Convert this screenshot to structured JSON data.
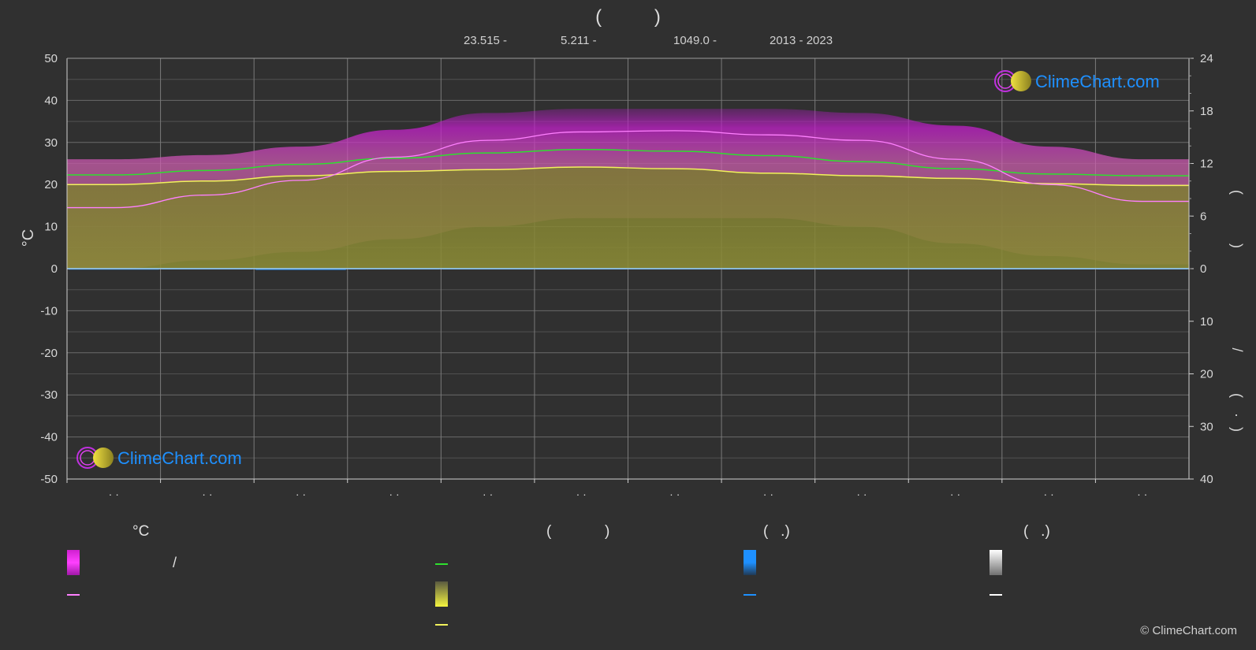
{
  "header": {
    "title_open": "(",
    "title_close": ")",
    "stats": [
      "23.515 -",
      "5.211 -",
      "1049.0 -",
      "2013 - 2023"
    ]
  },
  "axes": {
    "left_unit": "°C",
    "left_ticks": [
      "50",
      "40",
      "30",
      "20",
      "10",
      "0",
      "-10",
      "-20",
      "-30",
      "-40",
      "-50"
    ],
    "right_ticks_top": [
      "24",
      "18",
      "12",
      "6",
      "0"
    ],
    "right_ticks_bottom": [
      "10",
      "20",
      "30",
      "40"
    ],
    "right_labels": [
      "(",
      ")",
      "/",
      "(",
      "·",
      ")"
    ],
    "month_ticks": [
      "· ·",
      "· ·",
      "· ·",
      "· ·",
      "· ·",
      "· ·",
      "· ·",
      "· ·",
      "· ·",
      "· ·",
      "· ·",
      "· ·"
    ]
  },
  "logo": {
    "text": "ClimeChart.com"
  },
  "legend": {
    "col1_header": "°C",
    "col1_slash": "/",
    "col2_header_open": "(",
    "col2_header_close": ")",
    "col3_header": "(   .)",
    "col4_header": "(   .)"
  },
  "copyright": "© ClimeChart.com",
  "colors": {
    "background": "#303030",
    "temp_range": "#c020c0",
    "temp_mean": "#ff80ff",
    "daylight": "#2ee02e",
    "sunshine_fill": "#8a8a34",
    "sunshine_line": "#f2f25c",
    "rain": "#1e90ff",
    "snow": "#ffffff",
    "logo_text": "#1e90ff"
  },
  "chart_data": {
    "type": "area",
    "x": [
      "1",
      "2",
      "3",
      "4",
      "5",
      "6",
      "7",
      "8",
      "9",
      "10",
      "11",
      "12"
    ],
    "xlim": [
      0,
      12
    ],
    "ylim_left": [
      -50,
      50
    ],
    "ylim_right_top": [
      0,
      24
    ],
    "ylim_right_bottom": [
      0,
      40
    ],
    "grid": true,
    "series": [
      {
        "axis": "left",
        "values_max": [
          26,
          27,
          29,
          33,
          37,
          38,
          38,
          38,
          37,
          34,
          29,
          26
        ]
      },
      {
        "axis": "left",
        "values_min": [
          0,
          2,
          4,
          7,
          10,
          12,
          12,
          12,
          10,
          6,
          3,
          1
        ]
      },
      {
        "axis": "left",
        "values": [
          14.5,
          17.5,
          21,
          26.5,
          30.5,
          32.5,
          32.8,
          31.8,
          30.5,
          26,
          20,
          16
        ]
      },
      {
        "axis": "right_top",
        "values": [
          10.7,
          11.2,
          11.9,
          12.6,
          13.2,
          13.6,
          13.4,
          12.9,
          12.2,
          11.4,
          10.8,
          10.6
        ]
      },
      {
        "axis": "right_top",
        "values": [
          9.6,
          10.0,
          10.6,
          11.1,
          11.3,
          11.6,
          11.4,
          10.9,
          10.6,
          10.3,
          9.7,
          9.5
        ]
      },
      {
        "axis": "right_bottom",
        "values": [
          0.2,
          0.1,
          0.3,
          0.1,
          0.1,
          0.1,
          0.1,
          0.1,
          0.1,
          0.1,
          0.1,
          0.1
        ]
      }
    ]
  }
}
